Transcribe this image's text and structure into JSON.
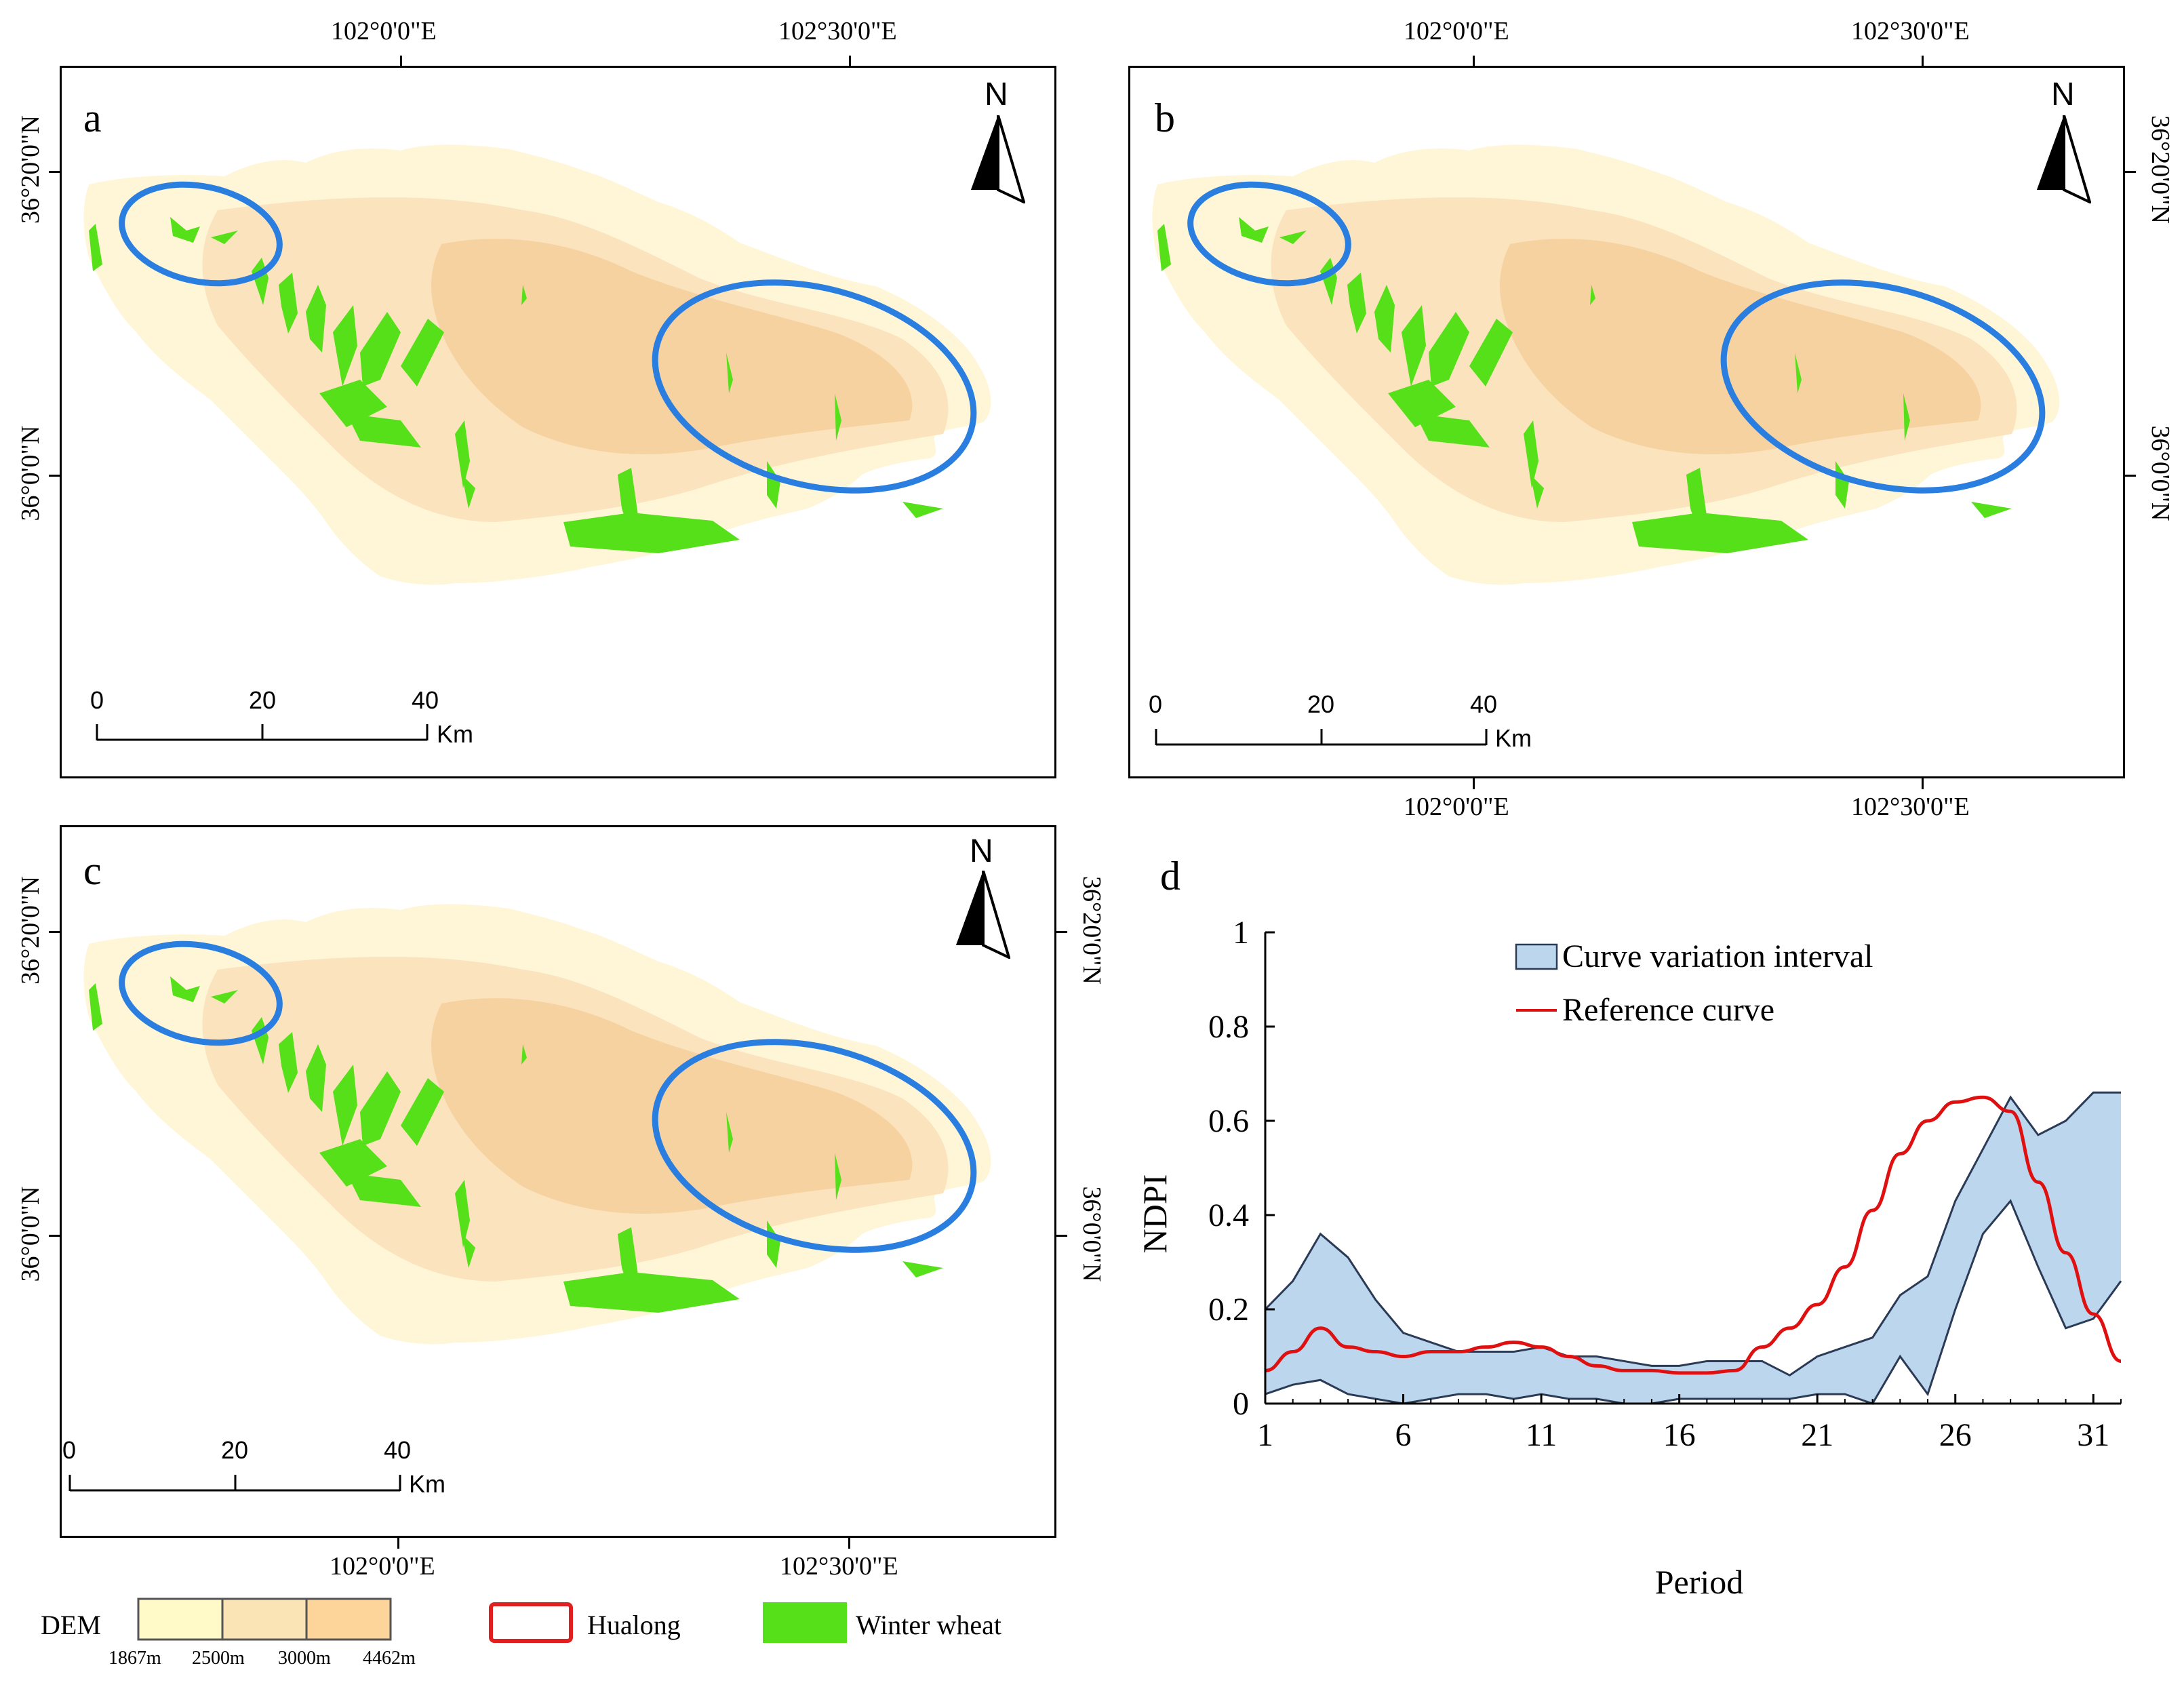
{
  "figure": {
    "panels": [
      {
        "id": "a",
        "letter": "a",
        "top_lon_labels": [
          "102°0'0\"E",
          "102°30'0\"E"
        ],
        "left_lat_labels": [
          "36°20'0\"N",
          "36°0'0\"N"
        ],
        "north": "N",
        "scale": {
          "ticks": [
            "0",
            "20",
            "40"
          ],
          "unit": "Km"
        }
      },
      {
        "id": "b",
        "letter": "b",
        "top_lon_labels": [
          "102°0'0\"E",
          "102°30'0\"E"
        ],
        "bottom_lon_labels": [
          "102°0'0\"E",
          "102°30'0\"E"
        ],
        "right_lat_labels": [
          "36°20'0\"N",
          "36°0'0\"N"
        ],
        "north": "N",
        "scale": {
          "ticks": [
            "0",
            "20",
            "40"
          ],
          "unit": "Km"
        }
      },
      {
        "id": "c",
        "letter": "c",
        "bottom_lon_labels": [
          "102°0'0\"E",
          "102°30'0\"E"
        ],
        "left_lat_labels": [
          "36°20'0\"N",
          "36°0'0\"N"
        ],
        "right_lat_labels": [
          "36°20'0\"N",
          "36°0'0\"N"
        ],
        "north": "N",
        "scale": {
          "ticks": [
            "0",
            "20",
            "40"
          ],
          "unit": "Km"
        }
      }
    ],
    "legend": {
      "dem_label": "DEM",
      "dem_breaks": [
        "1867m",
        "2500m",
        "3000m",
        "4462m"
      ],
      "dem_colors": [
        "#fffac8",
        "#fae3b4",
        "#fdd49a"
      ],
      "hualong_label": "Hualong",
      "hualong_color": "#e02020",
      "winter_wheat_label": "Winter wheat",
      "winter_wheat_color": "#55e01a"
    },
    "colors": {
      "ellipse": "#2a7ee0",
      "dem_low": "#fef6d6",
      "dem_mid": "#fae3bd",
      "dem_high": "#f6cf9c",
      "wheat": "#55e01a"
    }
  },
  "chart_data": {
    "type": "line",
    "panel_letter": "d",
    "title": "",
    "xlabel": "Period",
    "ylabel": "NDPI",
    "xlim": [
      1,
      32
    ],
    "ylim": [
      0,
      1
    ],
    "x_ticks": [
      1,
      6,
      11,
      16,
      21,
      26,
      31
    ],
    "y_ticks": [
      "0",
      "0.2",
      "0.4",
      "0.6",
      "0.8",
      "1"
    ],
    "y_tick_values": [
      0,
      0.2,
      0.4,
      0.6,
      0.8,
      1
    ],
    "legend": {
      "band_label": "Curve variation interval",
      "line_label": "Reference curve",
      "position": "top-left"
    },
    "band_color": "#bcd6ee",
    "line_color": "#e01010",
    "x": [
      1,
      2,
      3,
      4,
      5,
      6,
      7,
      8,
      9,
      10,
      11,
      12,
      13,
      14,
      15,
      16,
      17,
      18,
      19,
      20,
      21,
      22,
      23,
      24,
      25,
      26,
      27,
      28,
      29,
      30,
      31,
      32
    ],
    "series": [
      {
        "name": "Upper bound",
        "values": [
          0.2,
          0.26,
          0.36,
          0.31,
          0.22,
          0.15,
          0.13,
          0.11,
          0.11,
          0.11,
          0.12,
          0.1,
          0.1,
          0.09,
          0.08,
          0.08,
          0.09,
          0.09,
          0.09,
          0.06,
          0.1,
          0.12,
          0.14,
          0.23,
          0.27,
          0.43,
          0.54,
          0.65,
          0.57,
          0.6,
          0.66,
          0.66
        ]
      },
      {
        "name": "Lower bound",
        "values": [
          0.02,
          0.04,
          0.05,
          0.02,
          0.01,
          0.0,
          0.01,
          0.02,
          0.02,
          0.01,
          0.02,
          0.01,
          0.01,
          0.0,
          0.0,
          0.01,
          0.01,
          0.01,
          0.01,
          0.01,
          0.02,
          0.02,
          0.0,
          0.1,
          0.02,
          0.2,
          0.36,
          0.43,
          0.29,
          0.16,
          0.18,
          0.26
        ]
      },
      {
        "name": "Reference curve",
        "values": [
          0.07,
          0.11,
          0.16,
          0.12,
          0.11,
          0.1,
          0.11,
          0.11,
          0.12,
          0.13,
          0.12,
          0.1,
          0.08,
          0.07,
          0.07,
          0.065,
          0.065,
          0.07,
          0.12,
          0.16,
          0.21,
          0.29,
          0.41,
          0.53,
          0.6,
          0.64,
          0.65,
          0.62,
          0.47,
          0.32,
          0.19,
          0.09
        ]
      }
    ]
  }
}
